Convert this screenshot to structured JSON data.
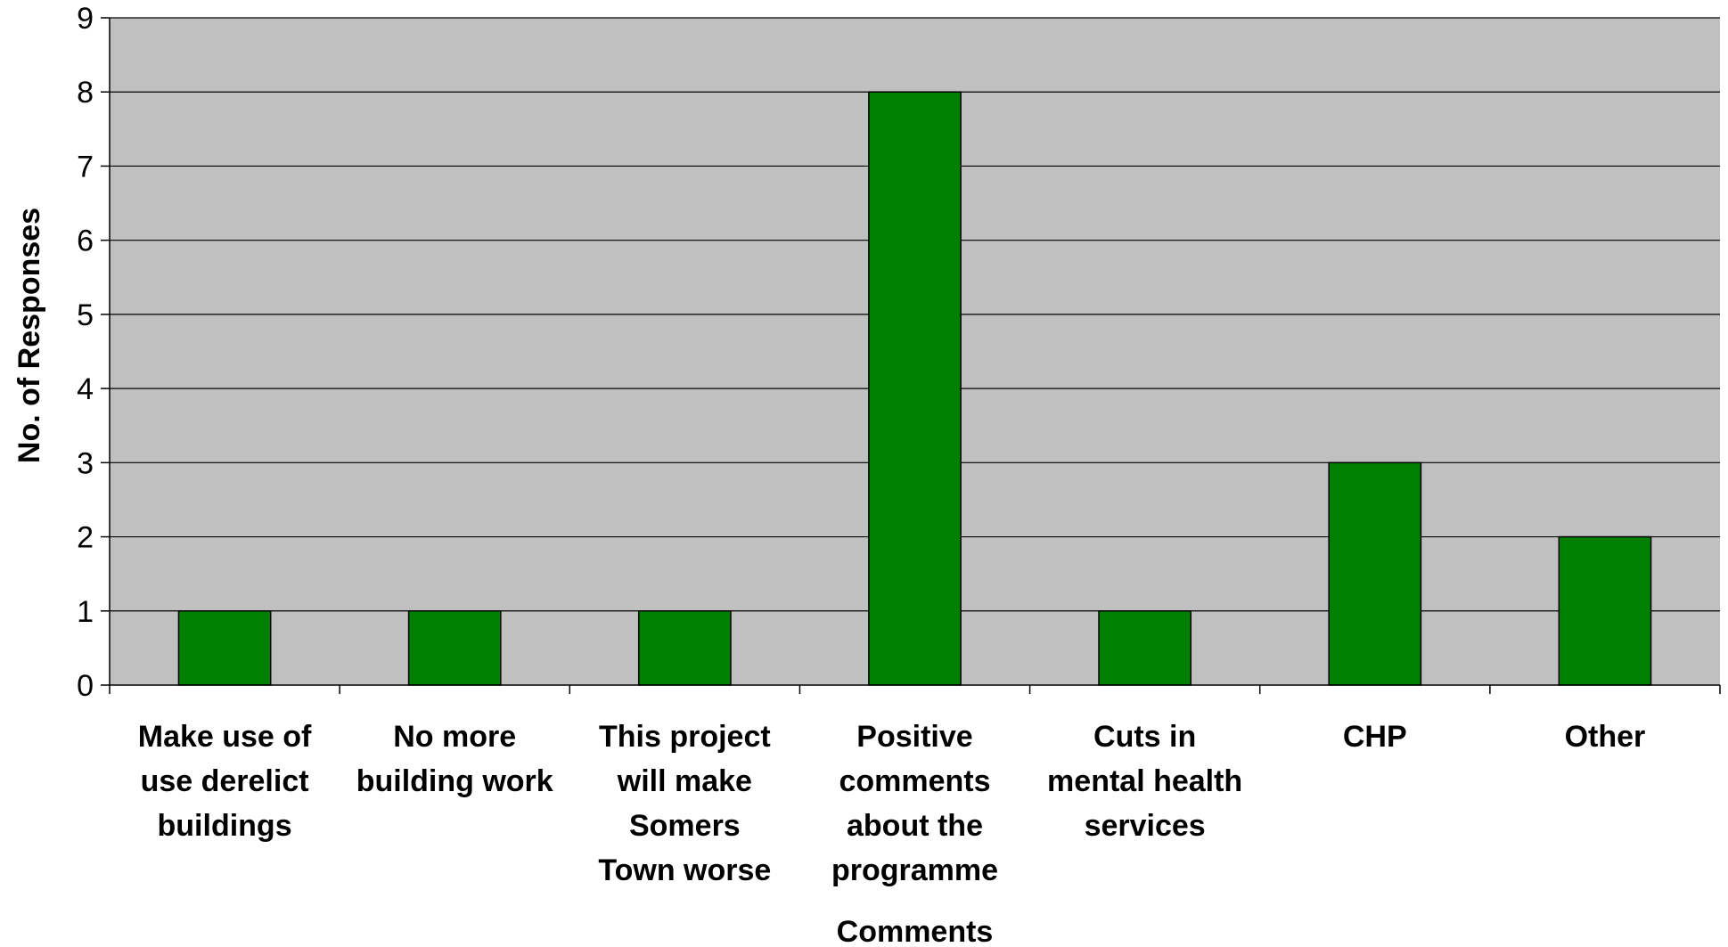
{
  "chart_data": {
    "type": "bar",
    "categories": [
      [
        "Make use of",
        "use derelict",
        "buildings"
      ],
      [
        "No more",
        "building work"
      ],
      [
        "This project",
        "will make",
        "Somers",
        "Town worse"
      ],
      [
        "Positive",
        "comments",
        "about the",
        "programme"
      ],
      [
        "Cuts in",
        "mental health",
        "services"
      ],
      [
        "CHP"
      ],
      [
        "Other"
      ]
    ],
    "values": [
      1,
      1,
      1,
      8,
      1,
      3,
      2
    ],
    "xlabel": "Comments",
    "ylabel": "No. of Responses",
    "ylim": [
      0,
      9
    ],
    "yticks": [
      0,
      1,
      2,
      3,
      4,
      5,
      6,
      7,
      8,
      9
    ],
    "grid": true,
    "colors": {
      "bar": "#008000",
      "plot_background": "#c0c0c0",
      "gridline": "#000000"
    }
  }
}
